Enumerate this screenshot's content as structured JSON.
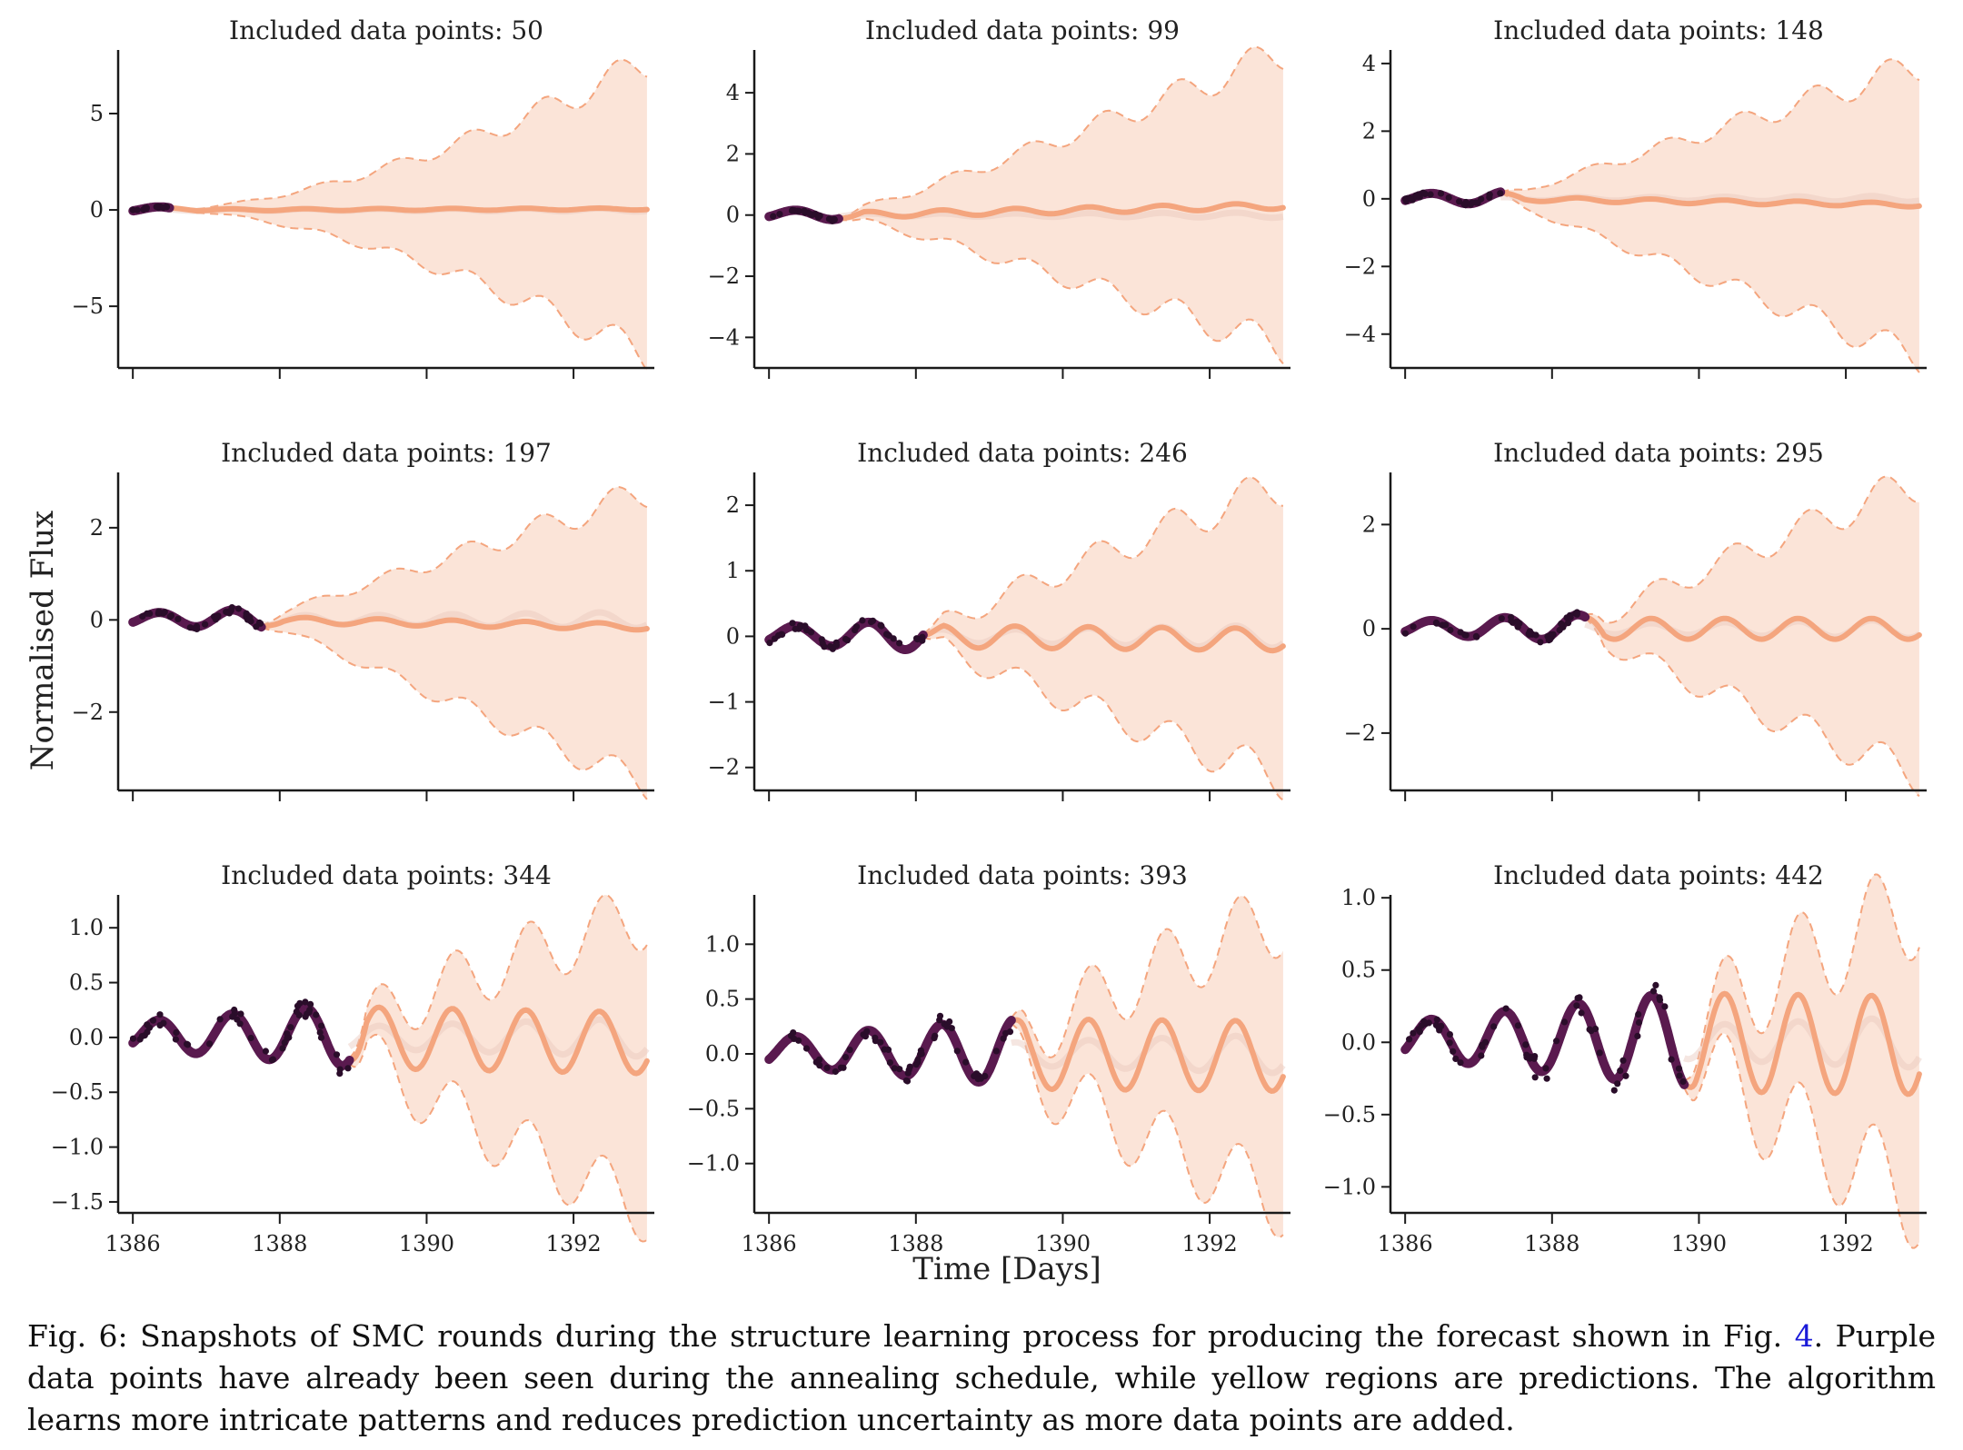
{
  "figure": {
    "ylabel": "Normalised Flux",
    "xlabel": "Time [Days]"
  },
  "colors": {
    "observed": "#5a1a4f",
    "observed_dark": "#2a0d2a",
    "forecast": "#f4a57e",
    "band_fill": "#fbe4d8",
    "axis": "#1a1a1a"
  },
  "caption": {
    "prefix": "Fig. 6: Snapshots of SMC rounds during the structure learning process for producing the forecast shown in Fig. ",
    "ref": "4",
    "suffix": ". Purple data points have already been seen during the annealing schedule, while yellow regions are predictions. The algorithm learns more intricate patterns and reduces prediction uncertainty as more data points are added."
  },
  "chart_data": [
    {
      "type": "line",
      "title": "Included data points: 50",
      "xlim": [
        1385.8,
        1393.1
      ],
      "ylim": [
        -8.2,
        8.3
      ],
      "yticks": [
        -5,
        0,
        5
      ],
      "ytick_labels": [
        "−5",
        "0",
        "5"
      ],
      "xticks": [
        1386,
        1388,
        1390,
        1392
      ],
      "xtick_labels": [],
      "data_end": 1386.5,
      "forecast_amp": 0.05,
      "band_max": 7.6,
      "band_min": -7.6,
      "band_exp": 1.6,
      "mean_offset": 0.05
    },
    {
      "type": "line",
      "title": "Included data points: 99",
      "xlim": [
        1385.8,
        1393.1
      ],
      "ylim": [
        -5.0,
        5.4
      ],
      "yticks": [
        -4,
        -2,
        0,
        2,
        4
      ],
      "ytick_labels": [
        "−4",
        "−2",
        "0",
        "2",
        "4"
      ],
      "xticks": [
        1386,
        1388,
        1390,
        1392
      ],
      "xtick_labels": [],
      "data_end": 1386.95,
      "forecast_amp": 0.1,
      "band_max": 5.0,
      "band_min": -4.6,
      "band_exp": 1.1,
      "mean_offset": 0.3
    },
    {
      "type": "line",
      "title": "Included data points: 148",
      "xlim": [
        1385.8,
        1393.1
      ],
      "ylim": [
        -5.0,
        4.4
      ],
      "yticks": [
        -4,
        -2,
        0,
        2,
        4
      ],
      "ytick_labels": [
        "−4",
        "−2",
        "0",
        "2",
        "4"
      ],
      "xticks": [
        1386,
        1388,
        1390,
        1392
      ],
      "xtick_labels": [],
      "data_end": 1387.3,
      "forecast_amp": 0.06,
      "band_max": 4.1,
      "band_min": -4.5,
      "band_exp": 1.0,
      "mean_offset": -0.18
    },
    {
      "type": "line",
      "title": "Included data points: 197",
      "xlim": [
        1385.8,
        1393.1
      ],
      "ylim": [
        -3.7,
        3.2
      ],
      "yticks": [
        -2,
        0,
        2
      ],
      "ytick_labels": [
        "−2",
        "0",
        "2"
      ],
      "xticks": [
        1386,
        1388,
        1390,
        1392
      ],
      "xtick_labels": [],
      "data_end": 1387.75,
      "forecast_amp": 0.07,
      "band_max": 2.9,
      "band_min": -3.4,
      "band_exp": 1.0,
      "mean_offset": -0.15
    },
    {
      "type": "line",
      "title": "Included data points: 246",
      "xlim": [
        1385.8,
        1393.1
      ],
      "ylim": [
        -2.35,
        2.5
      ],
      "yticks": [
        -2,
        -1,
        0,
        1,
        2
      ],
      "ytick_labels": [
        "−2",
        "−1",
        "0",
        "1",
        "2"
      ],
      "xticks": [
        1386,
        1388,
        1390,
        1392
      ],
      "xtick_labels": [],
      "data_end": 1388.1,
      "forecast_amp": 0.17,
      "band_max": 2.35,
      "band_min": -2.1,
      "band_exp": 0.9,
      "mean_offset": -0.05
    },
    {
      "type": "line",
      "title": "Included data points: 295",
      "xlim": [
        1385.8,
        1393.1
      ],
      "ylim": [
        -3.1,
        3.0
      ],
      "yticks": [
        -2,
        0,
        2
      ],
      "ytick_labels": [
        "−2",
        "0",
        "2"
      ],
      "xticks": [
        1386,
        1388,
        1390,
        1392
      ],
      "xtick_labels": [],
      "data_end": 1388.45,
      "forecast_amp": 0.2,
      "band_max": 2.8,
      "band_min": -2.8,
      "band_exp": 0.9,
      "mean_offset": 0.0
    },
    {
      "type": "line",
      "title": "Included data points: 344",
      "xlim": [
        1385.8,
        1393.1
      ],
      "ylim": [
        -1.6,
        1.3
      ],
      "yticks": [
        -1.5,
        -1.0,
        -0.5,
        0.0,
        0.5,
        1.0
      ],
      "ytick_labels": [
        "−1.5",
        "−1.0",
        "−0.5",
        "0.0",
        "0.5",
        "1.0"
      ],
      "xticks": [
        1386,
        1388,
        1390,
        1392
      ],
      "xtick_labels": [
        "1386",
        "1388",
        "1390",
        "1392"
      ],
      "data_end": 1388.95,
      "forecast_amp": 0.28,
      "band_max": 1.15,
      "band_min": -1.5,
      "band_exp": 0.8,
      "mean_offset": -0.05
    },
    {
      "type": "line",
      "title": "Included data points: 393",
      "xlim": [
        1385.8,
        1393.1
      ],
      "ylim": [
        -1.45,
        1.45
      ],
      "yticks": [
        -1.0,
        -0.5,
        0.0,
        0.5,
        1.0
      ],
      "ytick_labels": [
        "−1.0",
        "−0.5",
        "0.0",
        "0.5",
        "1.0"
      ],
      "xticks": [
        1386,
        1388,
        1390,
        1392
      ],
      "xtick_labels": [
        "1386",
        "1388",
        "1390",
        "1392"
      ],
      "data_end": 1389.3,
      "forecast_amp": 0.32,
      "band_max": 1.25,
      "band_min": -1.3,
      "band_exp": 0.8,
      "mean_offset": -0.02
    },
    {
      "type": "line",
      "title": "Included data points: 442",
      "xlim": [
        1385.8,
        1393.1
      ],
      "ylim": [
        -1.18,
        1.02
      ],
      "yticks": [
        -1.0,
        -0.5,
        0.0,
        0.5,
        1.0
      ],
      "ytick_labels": [
        "−1.0",
        "−0.5",
        "0.0",
        "0.5",
        "1.0"
      ],
      "xticks": [
        1386,
        1388,
        1390,
        1392
      ],
      "xtick_labels": [
        "1386",
        "1388",
        "1390",
        "1392"
      ],
      "data_end": 1389.8,
      "forecast_amp": 0.34,
      "band_max": 0.95,
      "band_min": -1.05,
      "band_exp": 0.8,
      "mean_offset": -0.02
    }
  ]
}
